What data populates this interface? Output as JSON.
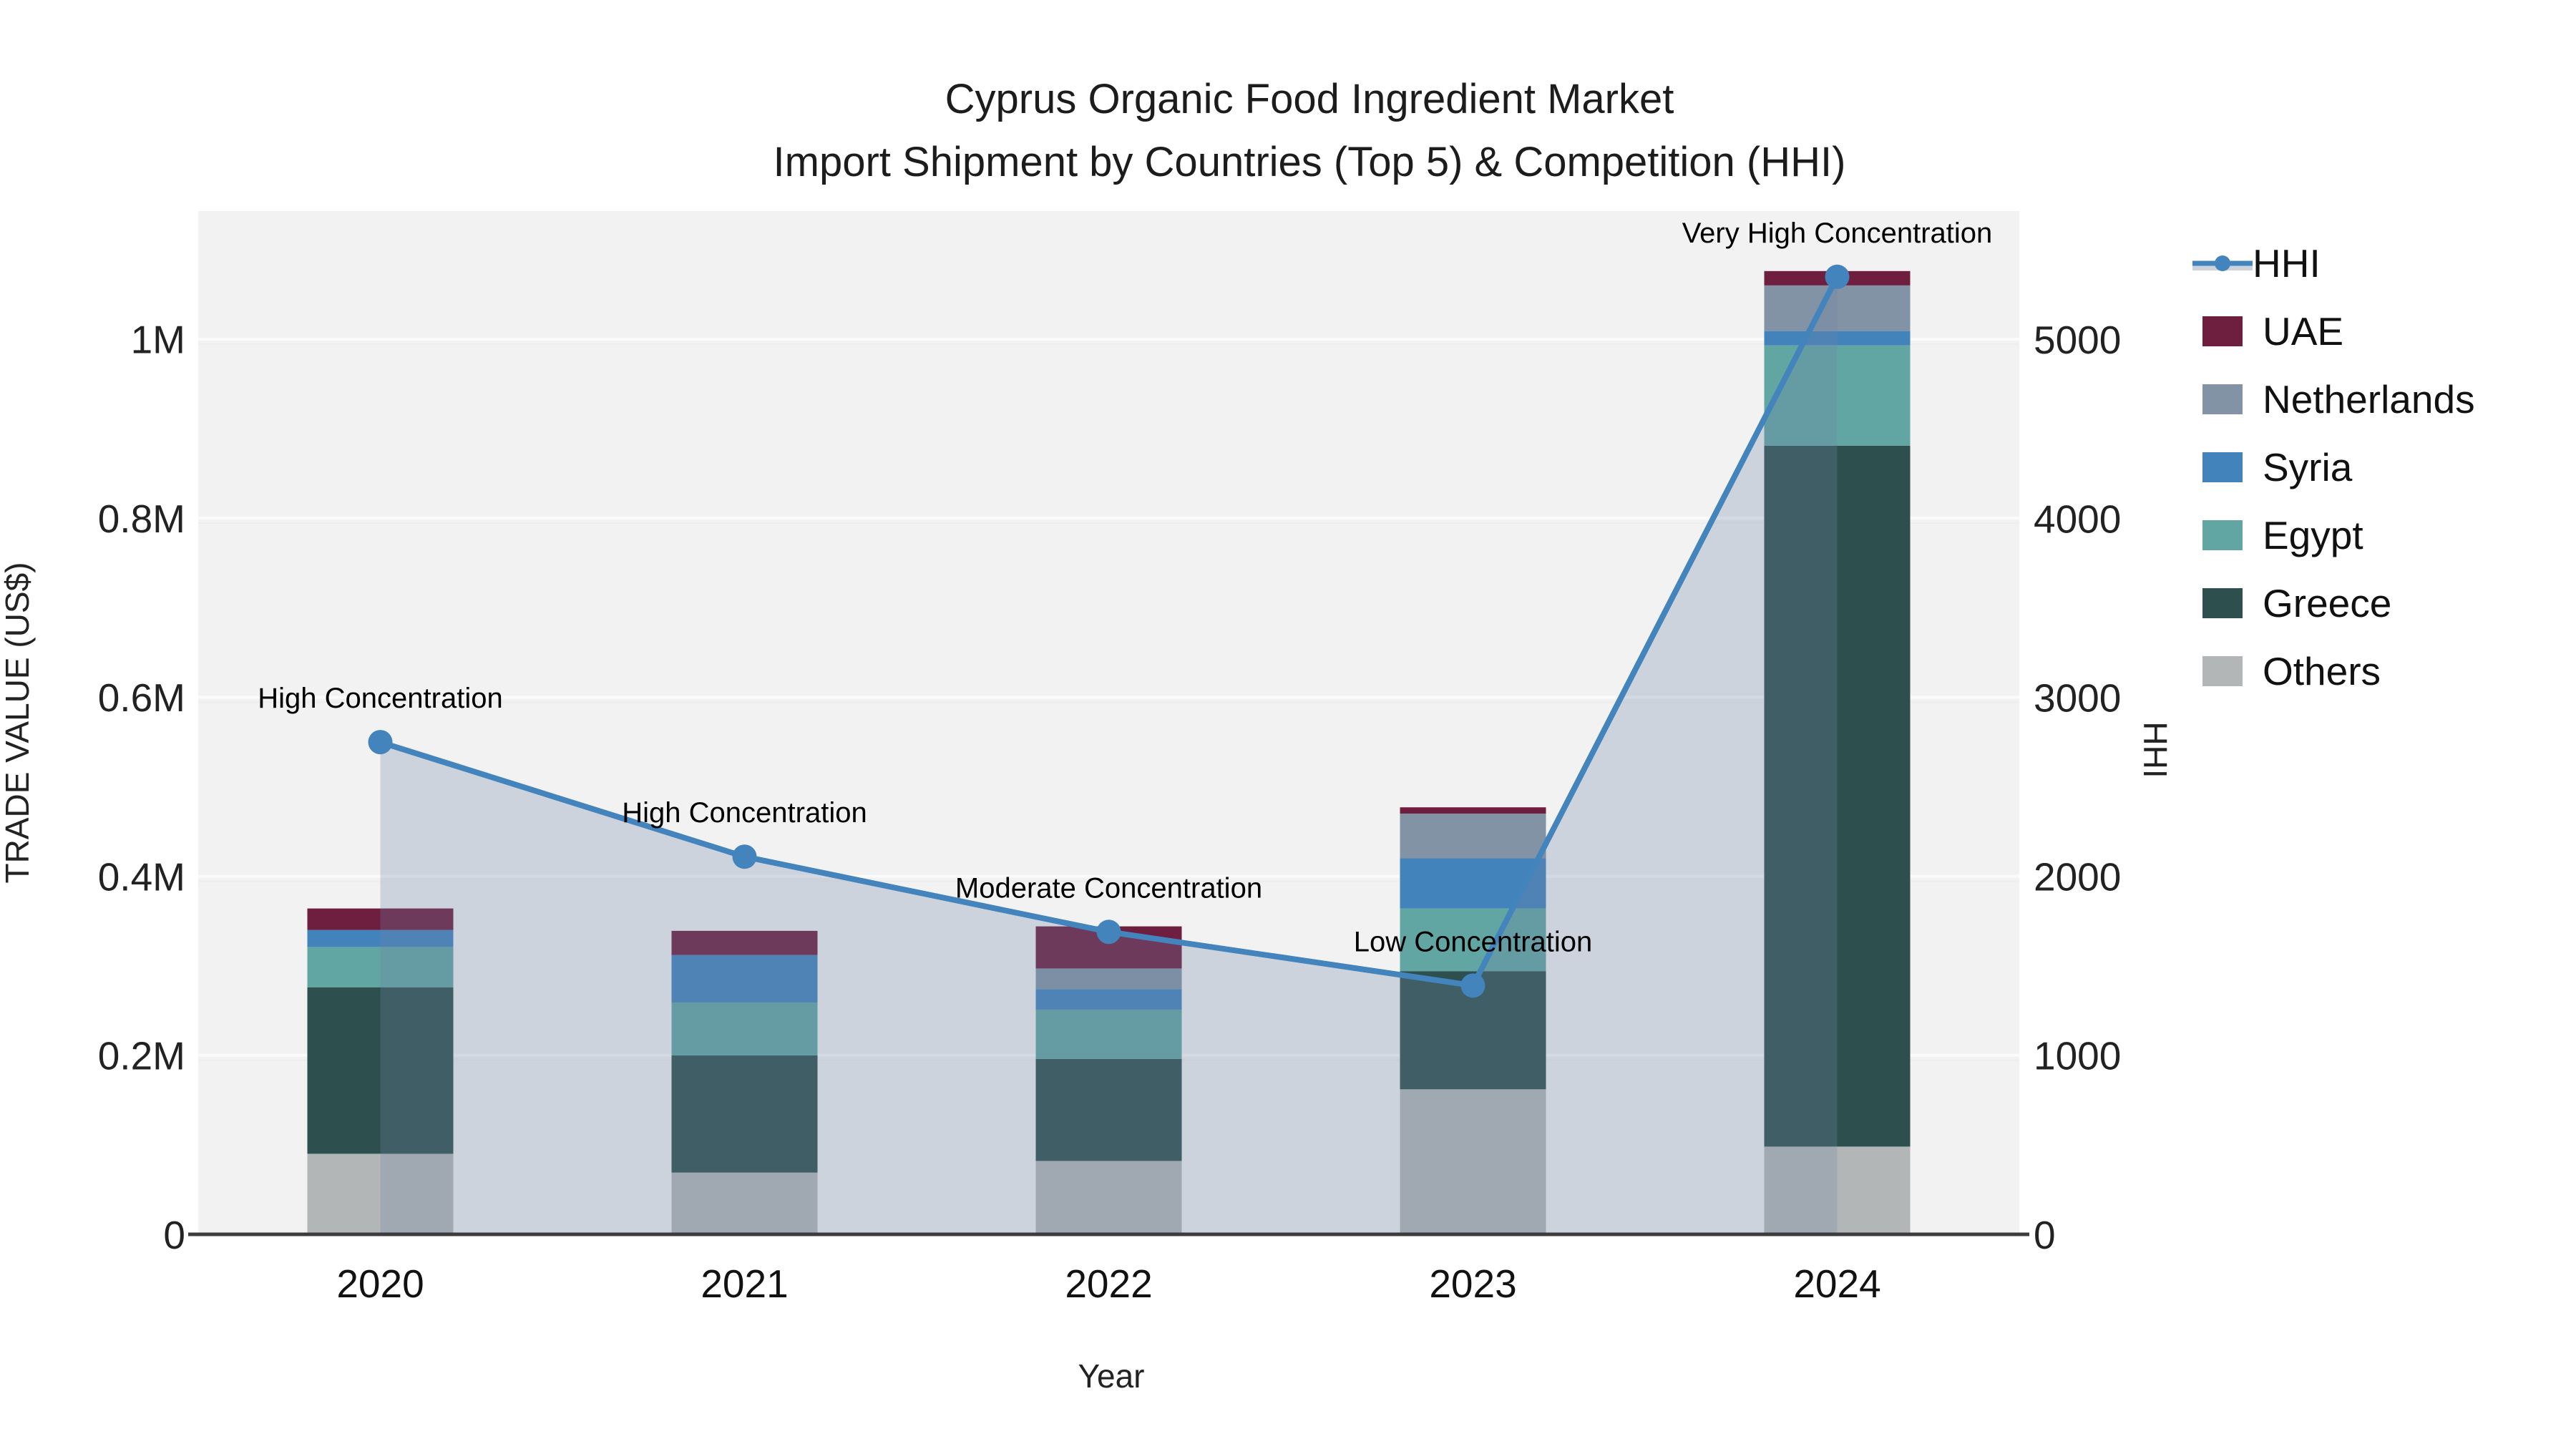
{
  "title": {
    "line1": "Cyprus Organic Food Ingredient Market",
    "line2": "Import Shipment by Countries (Top 5) & Competition (HHI)"
  },
  "axes": {
    "x_label": "Year",
    "y_left_label": "TRADE VALUE (US$)",
    "y_right_label": "HHI",
    "left_ticks": [
      {
        "label": "0",
        "value": 0
      },
      {
        "label": "0.2M",
        "value": 200000
      },
      {
        "label": "0.4M",
        "value": 400000
      },
      {
        "label": "0.6M",
        "value": 600000
      },
      {
        "label": "0.8M",
        "value": 800000
      },
      {
        "label": "1M",
        "value": 1000000
      }
    ],
    "right_ticks": [
      {
        "label": "0",
        "value": 0
      },
      {
        "label": "1000",
        "value": 1000
      },
      {
        "label": "2000",
        "value": 2000
      },
      {
        "label": "3000",
        "value": 3000
      },
      {
        "label": "4000",
        "value": 4000
      },
      {
        "label": "5000",
        "value": 5000
      }
    ]
  },
  "legend": {
    "items": [
      {
        "label": "HHI",
        "type": "line",
        "color": "#4384bc",
        "band": "#ccd3da"
      },
      {
        "label": "UAE",
        "type": "swatch",
        "color": "#6e1e3f"
      },
      {
        "label": "Netherlands",
        "type": "swatch",
        "color": "#8193a4"
      },
      {
        "label": "Syria",
        "type": "swatch",
        "color": "#4383bc"
      },
      {
        "label": "Egypt",
        "type": "swatch",
        "color": "#61a6a3"
      },
      {
        "label": "Greece",
        "type": "swatch",
        "color": "#2d4f4e"
      },
      {
        "label": "Others",
        "type": "swatch",
        "color": "#b3b6b6"
      }
    ]
  },
  "colors": {
    "plot_background": "#f2f2f2",
    "gridline": "#fbfbfb",
    "axis_line": "#3c3c3c",
    "hhi_line": "#4384bc",
    "hhi_fill": "rgba(111,132,164,0.28)",
    "text": "#222222"
  },
  "chart_data": {
    "type": "bar",
    "subtype": "stacked-bars-with-line",
    "title": "Cyprus Organic Food Ingredient Market — Import Shipment by Countries (Top 5) & Competition (HHI)",
    "xlabel": "Year",
    "ylabel": "TRADE VALUE (US$)",
    "ylabel_right": "HHI",
    "ylim": [
      0,
      1143000
    ],
    "y2lim": [
      0,
      5717
    ],
    "grid": true,
    "legend_position": "right",
    "categories": [
      "2020",
      "2021",
      "2022",
      "2023",
      "2024"
    ],
    "series": [
      {
        "name": "Others",
        "color": "#b3b6b6",
        "values": [
          90000,
          69000,
          82000,
          162000,
          98000
        ]
      },
      {
        "name": "Greece",
        "color": "#2d4f4e",
        "values": [
          186000,
          131000,
          114000,
          132000,
          783000
        ]
      },
      {
        "name": "Egypt",
        "color": "#61a6a3",
        "values": [
          45000,
          59000,
          55000,
          70000,
          112000
        ]
      },
      {
        "name": "Syria",
        "color": "#4383bc",
        "values": [
          19000,
          53000,
          23000,
          56000,
          16000
        ]
      },
      {
        "name": "Netherlands",
        "color": "#8193a4",
        "values": [
          0,
          0,
          23000,
          50000,
          51000
        ]
      },
      {
        "name": "UAE",
        "color": "#6e1e3f",
        "values": [
          24000,
          27000,
          47000,
          7000,
          16000
        ]
      }
    ],
    "totals": [
      364000,
      339000,
      344000,
      477000,
      1076000
    ],
    "line_series": {
      "name": "HHI",
      "color": "#4384bc",
      "values": [
        2750,
        2110,
        1690,
        1390,
        5350
      ],
      "area_fill": true
    },
    "annotations": [
      {
        "category": "2020",
        "text": "High Concentration"
      },
      {
        "category": "2021",
        "text": "High Concentration"
      },
      {
        "category": "2022",
        "text": "Moderate Concentration"
      },
      {
        "category": "2023",
        "text": "Low Concentration"
      },
      {
        "category": "2024",
        "text": "Very High Concentration"
      }
    ]
  }
}
